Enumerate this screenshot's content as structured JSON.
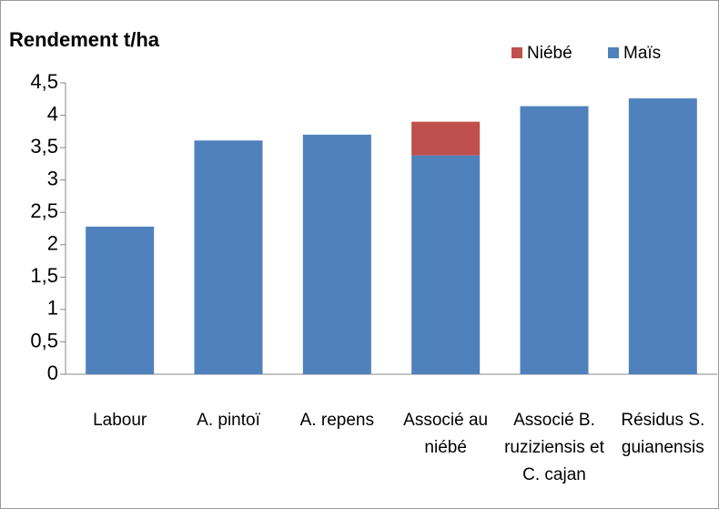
{
  "chart_data": {
    "type": "stacked_bar",
    "title": "Rendement t/ha",
    "categories": [
      "Labour",
      "A. pintoï",
      "A. repens",
      "Associé au niébé",
      "Associé B. ruziziensis et C. cajan",
      "Résidus S. guianensis"
    ],
    "series": [
      {
        "name": "Maïs",
        "color": "#4f81bd",
        "values": [
          2.28,
          3.61,
          3.7,
          3.38,
          4.14,
          4.26
        ]
      },
      {
        "name": "Niébé",
        "color": "#c0504d",
        "values": [
          0,
          0,
          0,
          0.52,
          0,
          0
        ]
      }
    ],
    "ylim": [
      0,
      4.5
    ],
    "yticks": [
      0,
      {
        "value": 0.5,
        "label": "0,5"
      },
      1,
      {
        "value": 1.5,
        "label": "1,5"
      },
      2,
      {
        "value": 2.5,
        "label": "2,5"
      },
      3,
      {
        "value": 3.5,
        "label": "3,5"
      },
      4,
      {
        "value": 4.5,
        "label": "4,5"
      }
    ],
    "legend": "top-right"
  }
}
